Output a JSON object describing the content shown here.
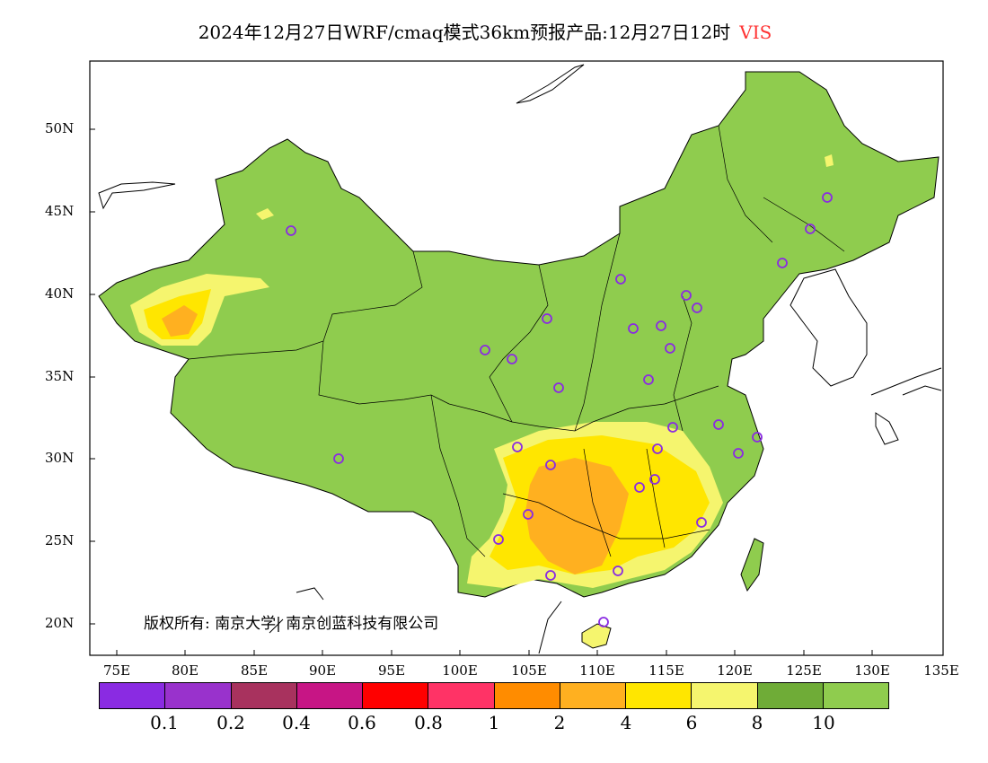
{
  "title": {
    "main": "2024年12月27日WRF/cmaq模式36km预报产品:12月27日12时",
    "variable": "VIS"
  },
  "copyright": "版权所有: 南京大学| 南京创蓝科技有限公司",
  "axes": {
    "lat_labels": [
      "50N",
      "45N",
      "40N",
      "35N",
      "30N",
      "25N",
      "20N"
    ],
    "lon_labels": [
      "75E",
      "80E",
      "85E",
      "90E",
      "95E",
      "100E",
      "105E",
      "110E",
      "115E",
      "120E",
      "125E",
      "130E",
      "135E"
    ]
  },
  "legend": {
    "colors": [
      "#8a2be2",
      "#9932cc",
      "#a8325e",
      "#c71585",
      "#ff0000",
      "#ff3366",
      "#ff8c00",
      "#ffb020",
      "#ffe600",
      "#f5f56e",
      "#6fac37",
      "#8fcc4e"
    ],
    "labels": [
      "0.1",
      "0.2",
      "0.4",
      "0.6",
      "0.8",
      "1",
      "2",
      "4",
      "6",
      "8",
      "10"
    ]
  },
  "map": {
    "land_color": "#8fcc4e",
    "dark_green": "#6fac37",
    "low_vis_colors": {
      "yellow": "#ffe600",
      "light_yellow": "#f5f56e",
      "orange": "#ffb020"
    },
    "station_color": "#8a2be2"
  }
}
